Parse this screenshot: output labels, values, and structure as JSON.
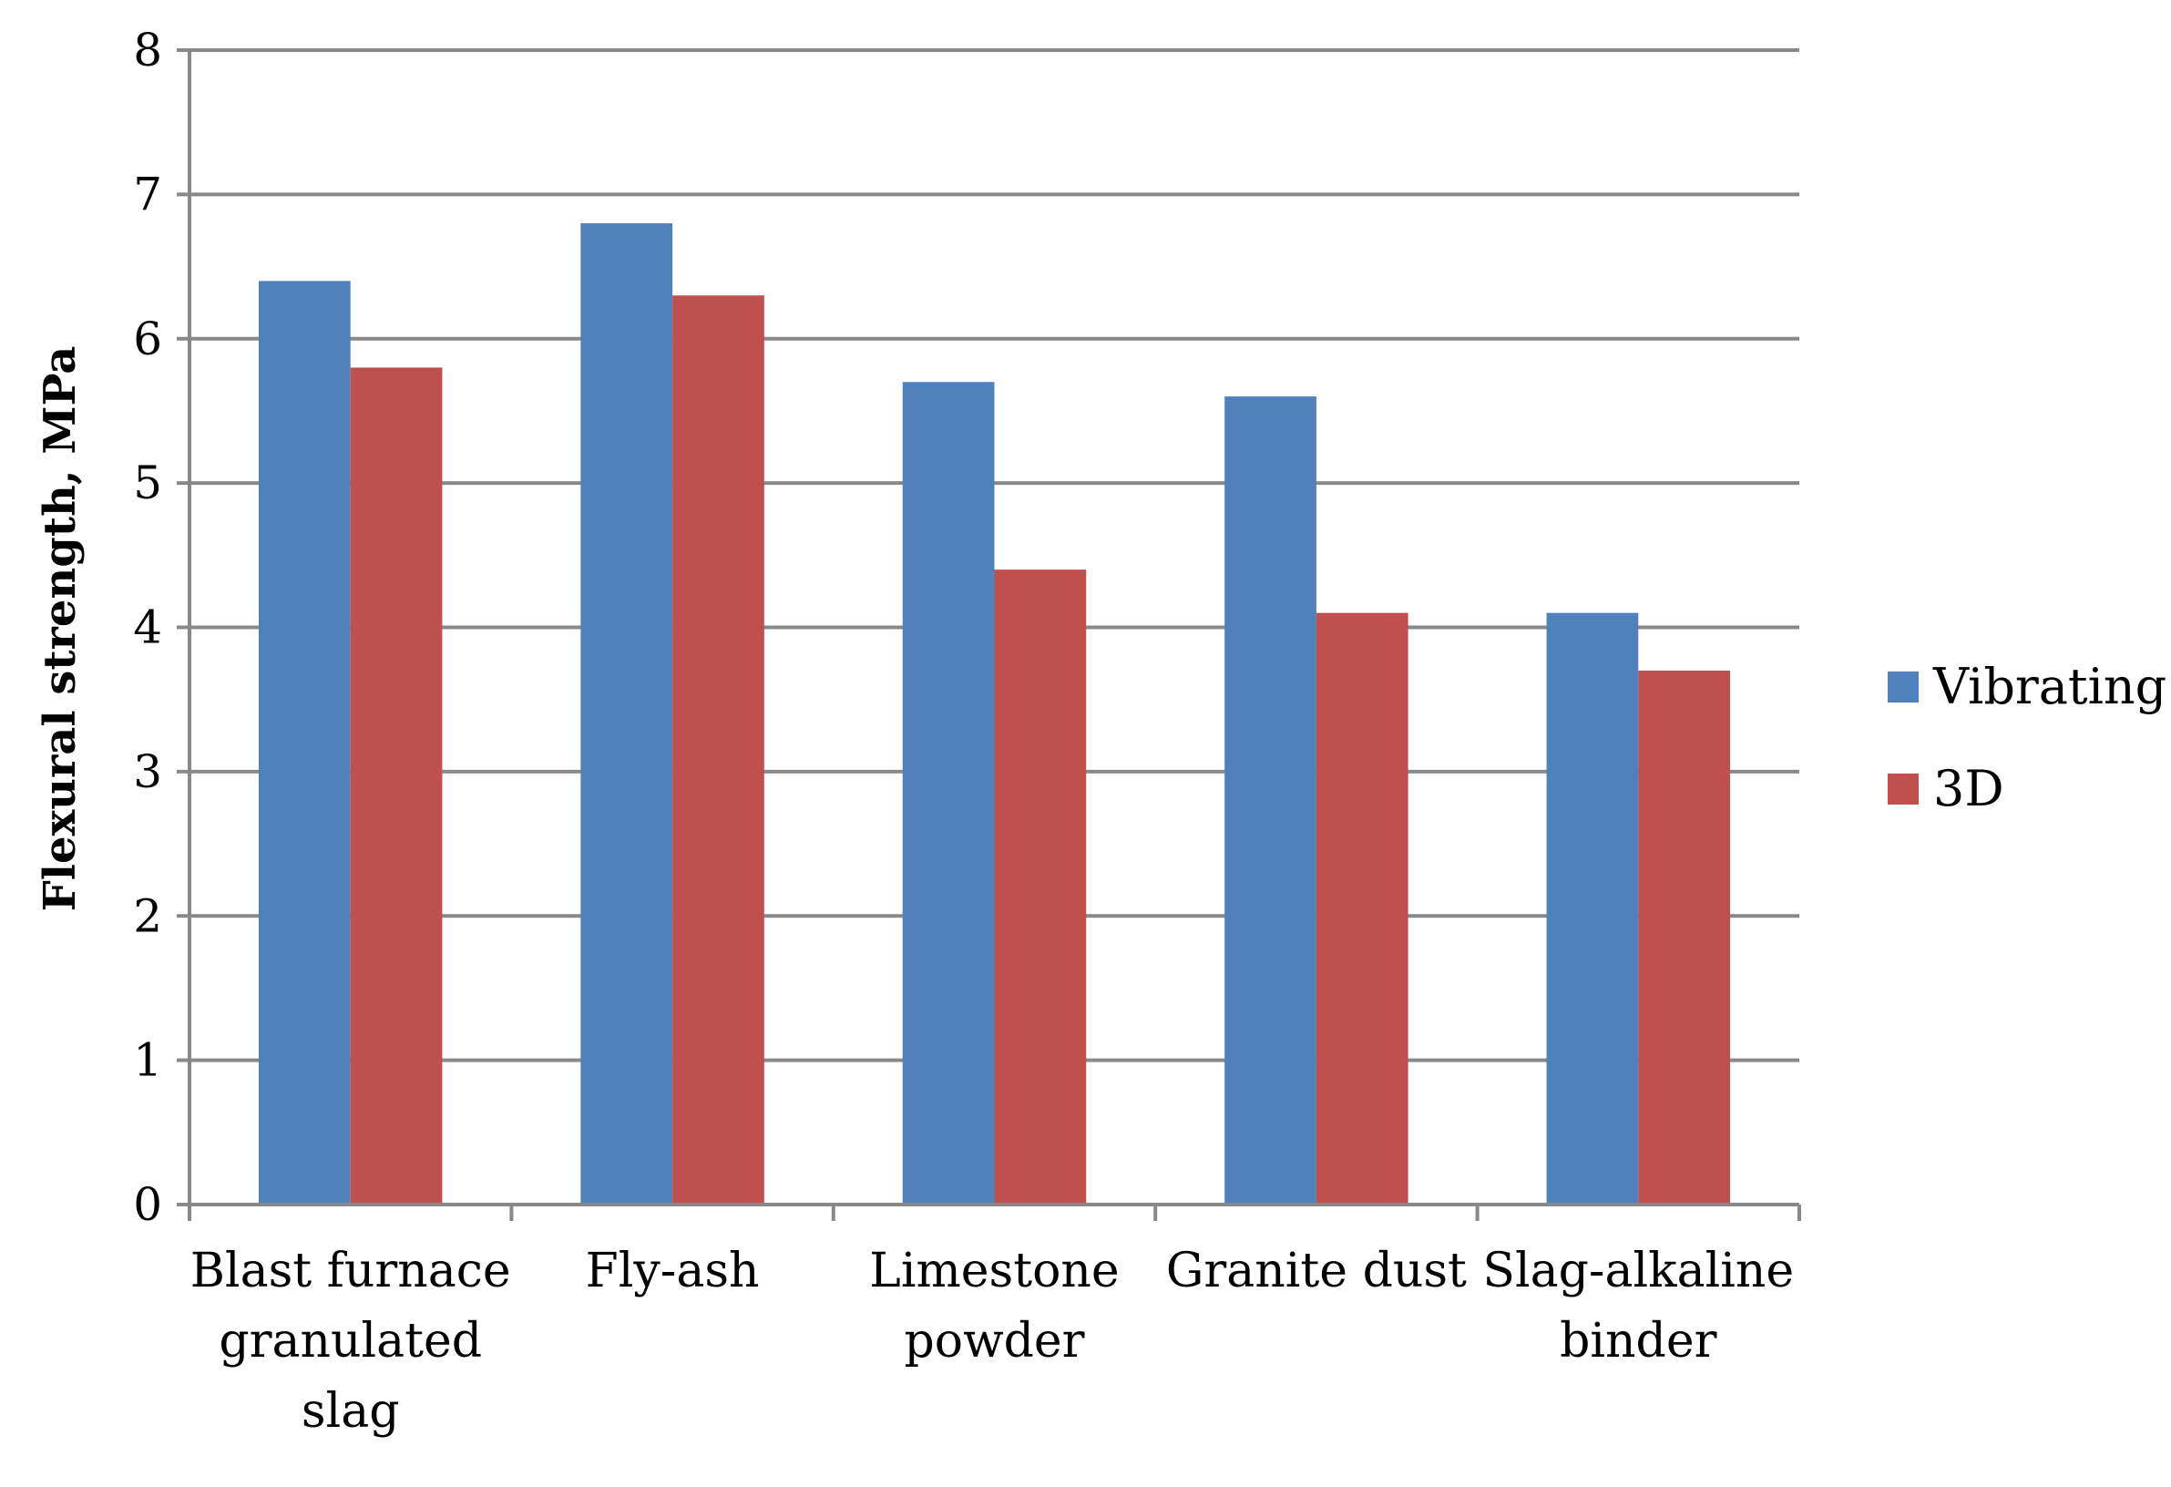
{
  "chart_data": {
    "type": "bar",
    "title": "",
    "xlabel": "",
    "ylabel": "Flexural strength, MPa",
    "ylim": [
      0,
      8
    ],
    "yticks": [
      0,
      1,
      2,
      3,
      4,
      5,
      6,
      7,
      8
    ],
    "grid": true,
    "legend_position": "right",
    "categories": [
      [
        "Blast furnace",
        "granulated",
        "slag"
      ],
      [
        "Fly-ash"
      ],
      [
        "Limestone",
        "powder"
      ],
      [
        "Granite dust"
      ],
      [
        "Slag-alkaline",
        "binder"
      ]
    ],
    "series": [
      {
        "name": "Vibrating",
        "color": "#4F81BD",
        "values": [
          6.4,
          6.8,
          5.7,
          5.6,
          4.1
        ]
      },
      {
        "name": "3D",
        "color": "#C0504D",
        "values": [
          5.8,
          6.3,
          4.4,
          4.1,
          3.7
        ]
      }
    ],
    "grid_color": "#898989",
    "axis_color": "#898989"
  }
}
